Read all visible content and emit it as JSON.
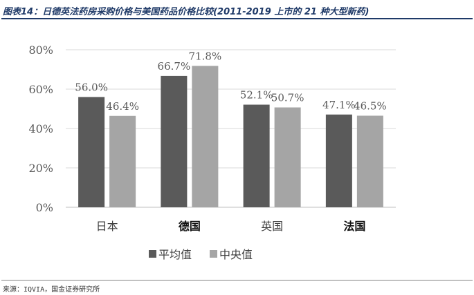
{
  "figure": {
    "title": "图表14：日德英法药房采购价格与美国药品价格比较(2011-2019 上市的 21 种大型新药)",
    "source": "来源：IQVIA，国金证券研究所"
  },
  "colors": {
    "series_mean": "#5a5a5a",
    "series_median": "#a5a5a5",
    "grid": "#d9d9d9",
    "title": "#1f3a68"
  },
  "chart_data": {
    "type": "bar",
    "categories": [
      "日本",
      "德国",
      "英国",
      "法国"
    ],
    "series": [
      {
        "name": "平均值",
        "values": [
          56.0,
          66.7,
          52.1,
          47.1
        ]
      },
      {
        "name": "中央值",
        "values": [
          46.4,
          71.8,
          50.7,
          46.5
        ]
      }
    ],
    "value_labels": [
      [
        "56.0%",
        "66.7%",
        "52.1%",
        "47.1%"
      ],
      [
        "46.4%",
        "71.8%",
        "50.7%",
        "46.5%"
      ]
    ],
    "yticks": [
      "0%",
      "20%",
      "40%",
      "60%",
      "80%"
    ],
    "ylim": [
      0,
      80
    ],
    "grid": true,
    "legend_position": "bottom",
    "bold_categories": [
      "德国",
      "法国"
    ]
  }
}
